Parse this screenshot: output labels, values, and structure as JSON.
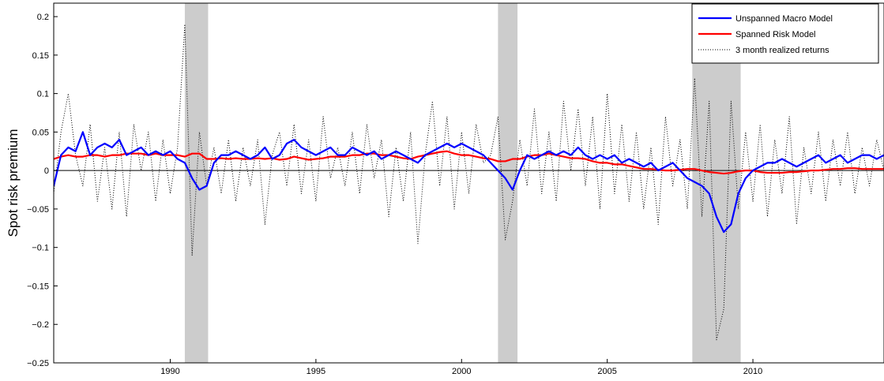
{
  "chart_data": {
    "type": "line",
    "y_label": "Spot risk premium",
    "xlim": [
      1986,
      2014.5
    ],
    "ylim": [
      -0.25,
      0.2175
    ],
    "xticks": [
      1990,
      1995,
      2000,
      2005,
      2010
    ],
    "yticks": [
      {
        "value": -0.25,
        "label": "−0.25"
      },
      {
        "value": -0.2,
        "label": "−0.2"
      },
      {
        "value": -0.15,
        "label": "−0.15"
      },
      {
        "value": -0.1,
        "label": "−0.1"
      },
      {
        "value": -0.05,
        "label": "−0.05"
      },
      0,
      0.05,
      0.1,
      0.15,
      0.2
    ],
    "legend": "upper right",
    "shaded_periods": [
      [
        1990.5,
        1991.3
      ],
      [
        2001.25,
        2001.92
      ],
      [
        2007.92,
        2009.58
      ]
    ],
    "shade_color": "#cccccc",
    "x": [
      1986,
      1986.25,
      1986.5,
      1986.75,
      1987,
      1987.25,
      1987.5,
      1987.75,
      1988,
      1988.25,
      1988.5,
      1988.75,
      1989,
      1989.25,
      1989.5,
      1989.75,
      1990,
      1990.25,
      1990.5,
      1990.75,
      1991,
      1991.25,
      1991.5,
      1991.75,
      1992,
      1992.25,
      1992.5,
      1992.75,
      1993,
      1993.25,
      1993.5,
      1993.75,
      1994,
      1994.25,
      1994.5,
      1994.75,
      1995,
      1995.25,
      1995.5,
      1995.75,
      1996,
      1996.25,
      1996.5,
      1996.75,
      1997,
      1997.25,
      1997.5,
      1997.75,
      1998,
      1998.25,
      1998.5,
      1998.75,
      1999,
      1999.25,
      1999.5,
      1999.75,
      2000,
      2000.25,
      2000.5,
      2000.75,
      2001,
      2001.25,
      2001.5,
      2001.75,
      2002,
      2002.25,
      2002.5,
      2002.75,
      2003,
      2003.25,
      2003.5,
      2003.75,
      2004,
      2004.25,
      2004.5,
      2004.75,
      2005,
      2005.25,
      2005.5,
      2005.75,
      2006,
      2006.25,
      2006.5,
      2006.75,
      2007,
      2007.25,
      2007.5,
      2007.75,
      2008,
      2008.25,
      2008.5,
      2008.75,
      2009,
      2009.25,
      2009.5,
      2009.75,
      2010,
      2010.25,
      2010.5,
      2010.75,
      2011,
      2011.25,
      2011.5,
      2011.75,
      2012,
      2012.25,
      2012.5,
      2012.75,
      2013,
      2013.25,
      2013.5,
      2013.75,
      2014,
      2014.25,
      2014.5
    ],
    "series": [
      {
        "name": "Unspanned Macro Model",
        "color": "#0000ff",
        "style": "solid",
        "values": [
          -0.02,
          0.02,
          0.03,
          0.025,
          0.05,
          0.02,
          0.03,
          0.035,
          0.03,
          0.04,
          0.02,
          0.025,
          0.03,
          0.02,
          0.025,
          0.02,
          0.025,
          0.015,
          0.01,
          -0.01,
          -0.025,
          -0.02,
          0.01,
          0.02,
          0.02,
          0.025,
          0.02,
          0.015,
          0.02,
          0.03,
          0.015,
          0.02,
          0.035,
          0.04,
          0.03,
          0.025,
          0.02,
          0.025,
          0.03,
          0.02,
          0.02,
          0.03,
          0.025,
          0.02,
          0.025,
          0.015,
          0.02,
          0.025,
          0.02,
          0.015,
          0.01,
          0.02,
          0.025,
          0.03,
          0.035,
          0.03,
          0.035,
          0.03,
          0.025,
          0.02,
          0.01,
          0,
          -0.01,
          -0.025,
          0,
          0.02,
          0.015,
          0.02,
          0.025,
          0.02,
          0.025,
          0.02,
          0.03,
          0.02,
          0.015,
          0.02,
          0.015,
          0.02,
          0.01,
          0.015,
          0.01,
          0.005,
          0.01,
          0,
          0.005,
          0.01,
          0,
          -0.01,
          -0.015,
          -0.02,
          -0.03,
          -0.06,
          -0.08,
          -0.07,
          -0.03,
          -0.01,
          0,
          0.005,
          0.01,
          0.01,
          0.015,
          0.01,
          0.005,
          0.01,
          0.015,
          0.02,
          0.01,
          0.015,
          0.02,
          0.01,
          0.015,
          0.02,
          0.02,
          0.015,
          0.02
        ]
      },
      {
        "name": "Spanned Risk Model",
        "color": "#ff0000",
        "style": "solid",
        "values": [
          0.015,
          0.018,
          0.02,
          0.018,
          0.018,
          0.02,
          0.02,
          0.018,
          0.02,
          0.02,
          0.022,
          0.022,
          0.022,
          0.02,
          0.022,
          0.02,
          0.02,
          0.02,
          0.018,
          0.022,
          0.022,
          0.015,
          0.015,
          0.016,
          0.015,
          0.016,
          0.015,
          0.015,
          0.016,
          0.015,
          0.016,
          0.014,
          0.015,
          0.018,
          0.016,
          0.014,
          0.015,
          0.016,
          0.018,
          0.018,
          0.018,
          0.02,
          0.02,
          0.022,
          0.022,
          0.02,
          0.02,
          0.018,
          0.016,
          0.015,
          0.018,
          0.02,
          0.022,
          0.024,
          0.025,
          0.022,
          0.02,
          0.02,
          0.018,
          0.016,
          0.015,
          0.012,
          0.012,
          0.015,
          0.015,
          0.018,
          0.02,
          0.02,
          0.022,
          0.02,
          0.018,
          0.016,
          0.016,
          0.015,
          0.012,
          0.01,
          0.01,
          0.008,
          0.008,
          0.006,
          0.004,
          0.002,
          0.002,
          0.001,
          0,
          0,
          0.001,
          0.002,
          0.002,
          0,
          -0.002,
          -0.003,
          -0.004,
          -0.003,
          -0.001,
          0,
          0,
          -0.002,
          -0.003,
          -0.003,
          -0.003,
          -0.002,
          -0.002,
          -0.001,
          0,
          0,
          0.001,
          0.002,
          0.002,
          0.003,
          0.003,
          0.002,
          0.002,
          0.002,
          0.002
        ]
      },
      {
        "name": "3 month realized returns",
        "color": "#000000",
        "style": "dotted",
        "values": [
          -0.03,
          0.05,
          0.1,
          0.02,
          -0.02,
          0.06,
          -0.04,
          0.03,
          -0.05,
          0.05,
          -0.06,
          0.06,
          0,
          0.05,
          -0.04,
          0.04,
          -0.03,
          0.03,
          0.19,
          -0.11,
          0.05,
          -0.02,
          0.03,
          -0.03,
          0.04,
          -0.04,
          0.03,
          -0.02,
          0.04,
          -0.07,
          0.02,
          0.05,
          -0.02,
          0.06,
          -0.03,
          0.04,
          -0.04,
          0.07,
          -0.01,
          0.03,
          -0.02,
          0.05,
          -0.03,
          0.06,
          -0.01,
          0.04,
          -0.06,
          0.03,
          -0.04,
          0.05,
          -0.095,
          0.02,
          0.09,
          -0.02,
          0.07,
          -0.05,
          0.05,
          -0.03,
          0.06,
          0.01,
          0.02,
          0.07,
          -0.09,
          -0.04,
          0.04,
          -0.02,
          0.08,
          -0.03,
          0.05,
          -0.04,
          0.09,
          0,
          0.08,
          -0.02,
          0.07,
          -0.05,
          0.1,
          -0.03,
          0.06,
          -0.04,
          0.05,
          -0.05,
          0.03,
          -0.07,
          0.07,
          -0.02,
          0.04,
          -0.05,
          0.12,
          -0.06,
          0.09,
          -0.22,
          -0.18,
          0.09,
          -0.05,
          0.05,
          -0.04,
          0.06,
          -0.06,
          0.04,
          -0.03,
          0.07,
          -0.07,
          0.03,
          -0.03,
          0.05,
          -0.04,
          0.04,
          -0.02,
          0.05,
          -0.03,
          0.03,
          -0.02,
          0.04,
          0
        ]
      }
    ]
  }
}
